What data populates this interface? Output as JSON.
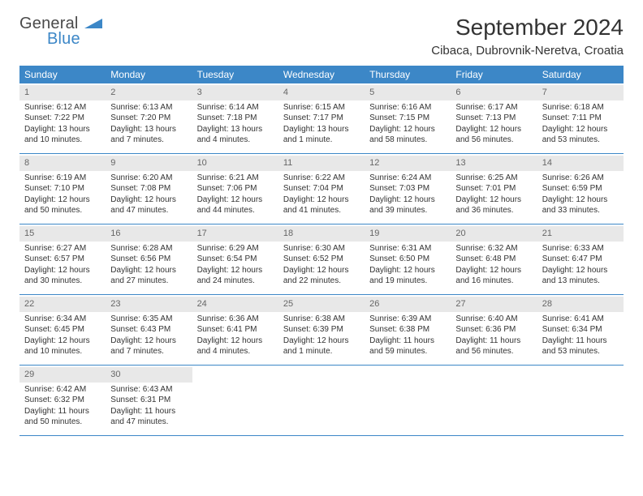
{
  "logo": {
    "text_general": "General",
    "text_blue": "Blue"
  },
  "header": {
    "month_title": "September 2024",
    "location": "Cibaca, Dubrovnik-Neretva, Croatia"
  },
  "style": {
    "header_bg": "#3c87c7",
    "header_fg": "#ffffff",
    "daynum_bg": "#e8e8e8",
    "border_color": "#3c87c7",
    "body_fontsize": 10,
    "weekday_fontsize": 12,
    "title_fontsize": 28,
    "location_fontsize": 15
  },
  "weekdays": [
    "Sunday",
    "Monday",
    "Tuesday",
    "Wednesday",
    "Thursday",
    "Friday",
    "Saturday"
  ],
  "weeks": [
    [
      {
        "n": "1",
        "sr": "Sunrise: 6:12 AM",
        "ss": "Sunset: 7:22 PM",
        "dl": "Daylight: 13 hours and 10 minutes."
      },
      {
        "n": "2",
        "sr": "Sunrise: 6:13 AM",
        "ss": "Sunset: 7:20 PM",
        "dl": "Daylight: 13 hours and 7 minutes."
      },
      {
        "n": "3",
        "sr": "Sunrise: 6:14 AM",
        "ss": "Sunset: 7:18 PM",
        "dl": "Daylight: 13 hours and 4 minutes."
      },
      {
        "n": "4",
        "sr": "Sunrise: 6:15 AM",
        "ss": "Sunset: 7:17 PM",
        "dl": "Daylight: 13 hours and 1 minute."
      },
      {
        "n": "5",
        "sr": "Sunrise: 6:16 AM",
        "ss": "Sunset: 7:15 PM",
        "dl": "Daylight: 12 hours and 58 minutes."
      },
      {
        "n": "6",
        "sr": "Sunrise: 6:17 AM",
        "ss": "Sunset: 7:13 PM",
        "dl": "Daylight: 12 hours and 56 minutes."
      },
      {
        "n": "7",
        "sr": "Sunrise: 6:18 AM",
        "ss": "Sunset: 7:11 PM",
        "dl": "Daylight: 12 hours and 53 minutes."
      }
    ],
    [
      {
        "n": "8",
        "sr": "Sunrise: 6:19 AM",
        "ss": "Sunset: 7:10 PM",
        "dl": "Daylight: 12 hours and 50 minutes."
      },
      {
        "n": "9",
        "sr": "Sunrise: 6:20 AM",
        "ss": "Sunset: 7:08 PM",
        "dl": "Daylight: 12 hours and 47 minutes."
      },
      {
        "n": "10",
        "sr": "Sunrise: 6:21 AM",
        "ss": "Sunset: 7:06 PM",
        "dl": "Daylight: 12 hours and 44 minutes."
      },
      {
        "n": "11",
        "sr": "Sunrise: 6:22 AM",
        "ss": "Sunset: 7:04 PM",
        "dl": "Daylight: 12 hours and 41 minutes."
      },
      {
        "n": "12",
        "sr": "Sunrise: 6:24 AM",
        "ss": "Sunset: 7:03 PM",
        "dl": "Daylight: 12 hours and 39 minutes."
      },
      {
        "n": "13",
        "sr": "Sunrise: 6:25 AM",
        "ss": "Sunset: 7:01 PM",
        "dl": "Daylight: 12 hours and 36 minutes."
      },
      {
        "n": "14",
        "sr": "Sunrise: 6:26 AM",
        "ss": "Sunset: 6:59 PM",
        "dl": "Daylight: 12 hours and 33 minutes."
      }
    ],
    [
      {
        "n": "15",
        "sr": "Sunrise: 6:27 AM",
        "ss": "Sunset: 6:57 PM",
        "dl": "Daylight: 12 hours and 30 minutes."
      },
      {
        "n": "16",
        "sr": "Sunrise: 6:28 AM",
        "ss": "Sunset: 6:56 PM",
        "dl": "Daylight: 12 hours and 27 minutes."
      },
      {
        "n": "17",
        "sr": "Sunrise: 6:29 AM",
        "ss": "Sunset: 6:54 PM",
        "dl": "Daylight: 12 hours and 24 minutes."
      },
      {
        "n": "18",
        "sr": "Sunrise: 6:30 AM",
        "ss": "Sunset: 6:52 PM",
        "dl": "Daylight: 12 hours and 22 minutes."
      },
      {
        "n": "19",
        "sr": "Sunrise: 6:31 AM",
        "ss": "Sunset: 6:50 PM",
        "dl": "Daylight: 12 hours and 19 minutes."
      },
      {
        "n": "20",
        "sr": "Sunrise: 6:32 AM",
        "ss": "Sunset: 6:48 PM",
        "dl": "Daylight: 12 hours and 16 minutes."
      },
      {
        "n": "21",
        "sr": "Sunrise: 6:33 AM",
        "ss": "Sunset: 6:47 PM",
        "dl": "Daylight: 12 hours and 13 minutes."
      }
    ],
    [
      {
        "n": "22",
        "sr": "Sunrise: 6:34 AM",
        "ss": "Sunset: 6:45 PM",
        "dl": "Daylight: 12 hours and 10 minutes."
      },
      {
        "n": "23",
        "sr": "Sunrise: 6:35 AM",
        "ss": "Sunset: 6:43 PM",
        "dl": "Daylight: 12 hours and 7 minutes."
      },
      {
        "n": "24",
        "sr": "Sunrise: 6:36 AM",
        "ss": "Sunset: 6:41 PM",
        "dl": "Daylight: 12 hours and 4 minutes."
      },
      {
        "n": "25",
        "sr": "Sunrise: 6:38 AM",
        "ss": "Sunset: 6:39 PM",
        "dl": "Daylight: 12 hours and 1 minute."
      },
      {
        "n": "26",
        "sr": "Sunrise: 6:39 AM",
        "ss": "Sunset: 6:38 PM",
        "dl": "Daylight: 11 hours and 59 minutes."
      },
      {
        "n": "27",
        "sr": "Sunrise: 6:40 AM",
        "ss": "Sunset: 6:36 PM",
        "dl": "Daylight: 11 hours and 56 minutes."
      },
      {
        "n": "28",
        "sr": "Sunrise: 6:41 AM",
        "ss": "Sunset: 6:34 PM",
        "dl": "Daylight: 11 hours and 53 minutes."
      }
    ],
    [
      {
        "n": "29",
        "sr": "Sunrise: 6:42 AM",
        "ss": "Sunset: 6:32 PM",
        "dl": "Daylight: 11 hours and 50 minutes."
      },
      {
        "n": "30",
        "sr": "Sunrise: 6:43 AM",
        "ss": "Sunset: 6:31 PM",
        "dl": "Daylight: 11 hours and 47 minutes."
      },
      null,
      null,
      null,
      null,
      null
    ]
  ]
}
